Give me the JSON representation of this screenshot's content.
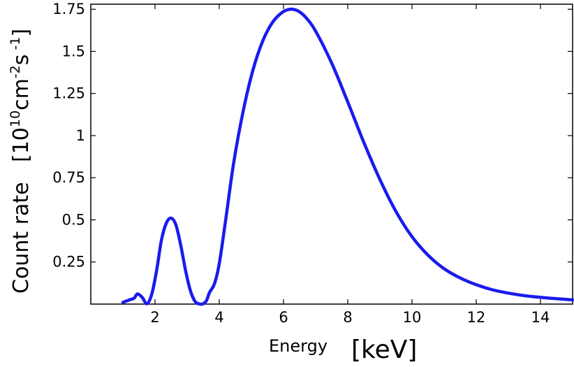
{
  "chart_data": {
    "type": "line",
    "title": "",
    "xlabel": "Energy",
    "xlabel_unit": "[keV]",
    "ylabel": "Count  rate",
    "ylabel_unit_parts": [
      "[10",
      "10",
      "cm",
      "-2",
      "s",
      " -1",
      "]"
    ],
    "xlim": [
      0,
      15
    ],
    "ylim": [
      0,
      1.78
    ],
    "xticks": [
      2,
      4,
      6,
      8,
      10,
      12,
      14
    ],
    "xtick_labels": [
      "2",
      "4",
      "6",
      "8",
      "10",
      "12",
      "14"
    ],
    "yticks": [
      0.25,
      0.5,
      0.75,
      1,
      1.25,
      1.5,
      1.75
    ],
    "ytick_labels": [
      "0.25",
      "0.5",
      "0.75",
      "1",
      "1.25",
      "1.5",
      "1.75"
    ],
    "grid": false,
    "series": [
      {
        "color": "#1a1aee",
        "x": [
          1.0,
          1.2,
          1.35,
          1.45,
          1.6,
          1.75,
          1.9,
          2.05,
          2.2,
          2.35,
          2.5,
          2.65,
          2.8,
          2.95,
          3.1,
          3.25,
          3.4,
          3.5,
          3.6,
          3.7,
          3.85,
          4.0,
          4.2,
          4.45,
          4.75,
          5.05,
          5.35,
          5.65,
          5.95,
          6.2,
          6.45,
          6.7,
          7.0,
          7.5,
          8.0,
          8.5,
          9.0,
          9.5,
          10.0,
          10.5,
          11.0,
          11.5,
          12.0,
          12.5,
          13.0,
          13.5,
          14.0,
          14.5,
          15.0
        ],
        "y": [
          0.01,
          0.025,
          0.035,
          0.06,
          0.04,
          0.002,
          0.06,
          0.2,
          0.38,
          0.48,
          0.51,
          0.47,
          0.35,
          0.2,
          0.08,
          0.015,
          0.0,
          0.002,
          0.02,
          0.07,
          0.12,
          0.24,
          0.5,
          0.84,
          1.15,
          1.39,
          1.56,
          1.67,
          1.73,
          1.75,
          1.74,
          1.7,
          1.62,
          1.43,
          1.2,
          0.96,
          0.74,
          0.55,
          0.4,
          0.29,
          0.21,
          0.155,
          0.115,
          0.085,
          0.065,
          0.05,
          0.04,
          0.032,
          0.025
        ]
      }
    ]
  }
}
